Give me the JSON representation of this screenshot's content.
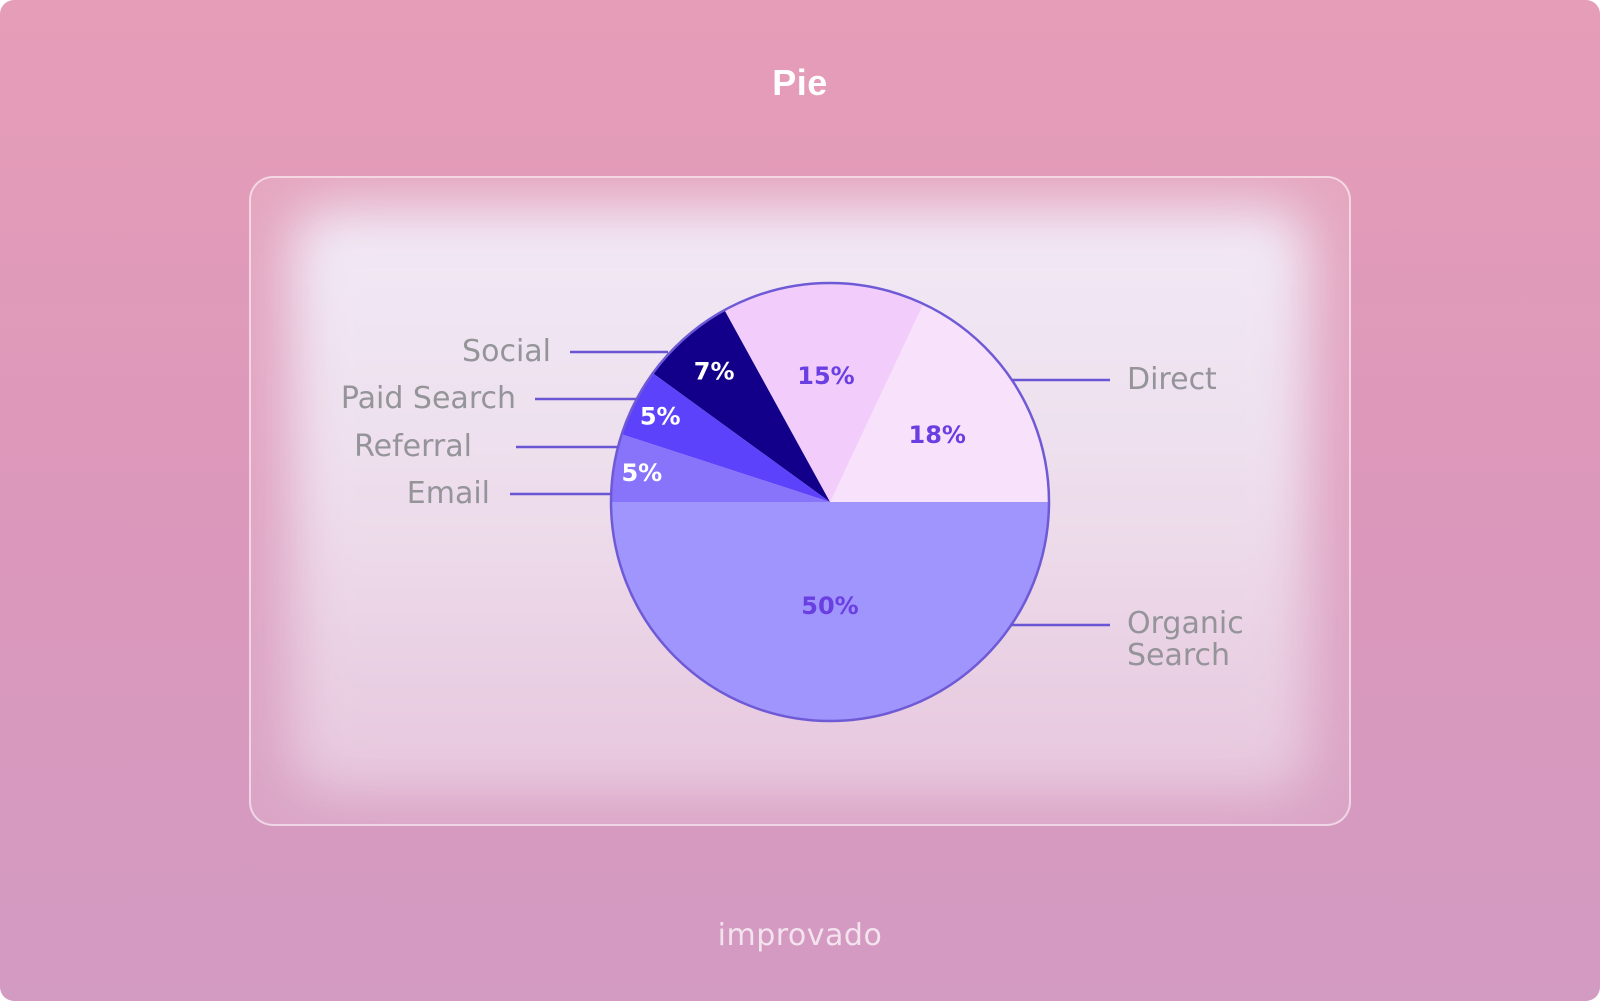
{
  "page": {
    "title": "Pie",
    "brand": "improvado"
  },
  "chart_data": {
    "type": "pie",
    "title": "Pie",
    "slices": [
      {
        "label": "Direct",
        "value": 18,
        "display": "18%",
        "color": "#f8e1fb",
        "label_color": "#6a3fe2"
      },
      {
        "label": "Social",
        "value": 15,
        "display": "15%",
        "color": "#f2cdfb",
        "label_color": "#6a3fe2"
      },
      {
        "label": "Paid Search",
        "value": 7,
        "display": "7%",
        "color": "#13008a",
        "label_color": "#ffffff"
      },
      {
        "label": "Referral",
        "value": 5,
        "display": "5%",
        "color": "#5c43fb",
        "label_color": "#ffffff"
      },
      {
        "label": "Email",
        "value": 5,
        "display": "5%",
        "color": "#8874fb",
        "label_color": "#ffffff"
      },
      {
        "label": "Organic Search",
        "value": 50,
        "display": "50%",
        "color": "#a094fd",
        "label_color": "#6a3fe2"
      }
    ],
    "outline_color": "#6f5ad6",
    "leader_line_color": "#6a55d4",
    "legend_text_color": "#949499"
  }
}
